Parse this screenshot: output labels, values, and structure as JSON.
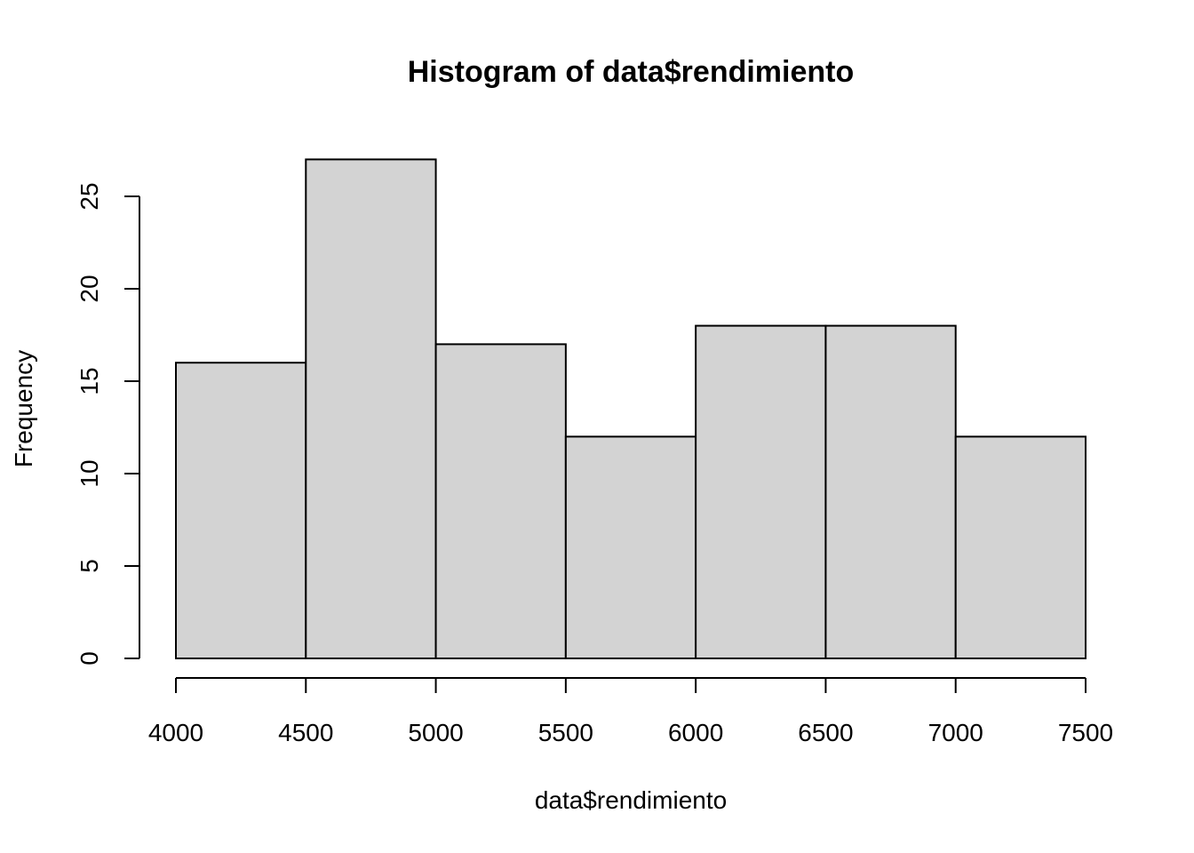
{
  "chart_data": {
    "type": "bar",
    "title": "Histogram of data$rendimiento",
    "xlabel": "data$rendimiento",
    "ylabel": "Frequency",
    "bins": [
      {
        "start": 4000,
        "end": 4500,
        "count": 16
      },
      {
        "start": 4500,
        "end": 5000,
        "count": 27
      },
      {
        "start": 5000,
        "end": 5500,
        "count": 17
      },
      {
        "start": 5500,
        "end": 6000,
        "count": 12
      },
      {
        "start": 6000,
        "end": 6500,
        "count": 18
      },
      {
        "start": 6500,
        "end": 7000,
        "count": 18
      },
      {
        "start": 7000,
        "end": 7500,
        "count": 12
      }
    ],
    "xlim": [
      4000,
      7500
    ],
    "ylim": [
      0,
      27
    ],
    "x_ticks": [
      "4000",
      "4500",
      "5000",
      "5500",
      "6000",
      "6500",
      "7000",
      "7500"
    ],
    "y_ticks": [
      "0",
      "5",
      "10",
      "15",
      "20",
      "25"
    ],
    "bar_color": "#d3d3d3",
    "grid": false
  }
}
